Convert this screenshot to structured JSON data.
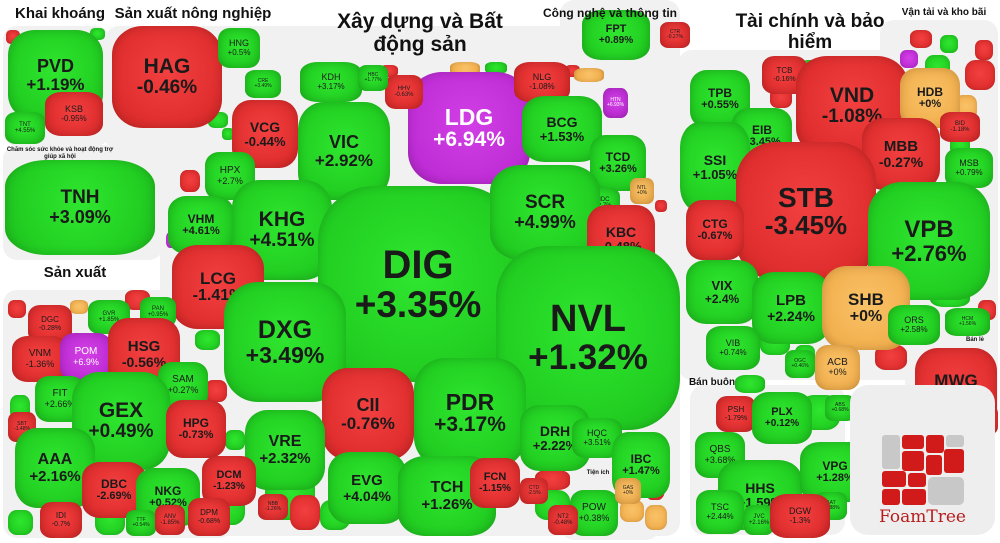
{
  "groups": [
    {
      "label": "Khai khoáng"
    },
    {
      "label": "Sản xuất nông nghiệp"
    },
    {
      "label": "Xây dựng và Bất động sản"
    },
    {
      "label": "Công nghệ và thông tin"
    },
    {
      "label": "Tài chính và bảo hiểm"
    },
    {
      "label": "Vận tải và kho bãi"
    },
    {
      "label": "Chăm sóc sức khỏe và hoạt động trợ giúp xã hội"
    },
    {
      "label": "Sản xuất"
    },
    {
      "label": "Bán buôn"
    },
    {
      "label": "Bán lẻ"
    },
    {
      "label": "Tiện ích"
    }
  ],
  "colors": {
    "up": "#22cf22",
    "down": "#e12f2f",
    "unchanged": "#f2b04f",
    "ceiling": "#bf2dd6"
  },
  "stocks": [
    {
      "ticker": "PVD",
      "change": "+1.19%",
      "color": "g"
    },
    {
      "ticker": "KSB",
      "change": "-0.95%",
      "color": "r"
    },
    {
      "ticker": "TNT",
      "change": "+4.55%",
      "color": "g"
    },
    {
      "ticker": "TNH",
      "change": "+3.09%",
      "color": "g"
    },
    {
      "ticker": "HAG",
      "change": "-0.46%",
      "color": "r"
    },
    {
      "ticker": "HNG",
      "change": "+0.5%",
      "color": "g"
    },
    {
      "ticker": "VCG",
      "change": "-0.44%",
      "color": "r"
    },
    {
      "ticker": "CRE",
      "change": "+3.49%",
      "color": "g"
    },
    {
      "ticker": "KDH",
      "change": "+3.17%",
      "color": "g"
    },
    {
      "ticker": "VIC",
      "change": "+2.92%",
      "color": "g"
    },
    {
      "ticker": "HPX",
      "change": "+2.7%",
      "color": "g"
    },
    {
      "ticker": "VHM",
      "change": "+4.61%",
      "color": "g"
    },
    {
      "ticker": "KHG",
      "change": "+4.51%",
      "color": "g"
    },
    {
      "ticker": "LCG",
      "change": "-1.41%",
      "color": "r"
    },
    {
      "ticker": "LDG",
      "change": "+6.94%",
      "color": "p"
    },
    {
      "ticker": "DIG",
      "change": "+3.35%",
      "color": "g"
    },
    {
      "ticker": "NLG",
      "change": "-1.08%",
      "color": "r"
    },
    {
      "ticker": "HHV",
      "change": "-0.63%",
      "color": "r"
    },
    {
      "ticker": "HBC",
      "change": "+1.77%",
      "color": "g"
    },
    {
      "ticker": "BCG",
      "change": "+1.53%",
      "color": "g"
    },
    {
      "ticker": "HTN",
      "change": "+6.93%",
      "color": "p"
    },
    {
      "ticker": "TCD",
      "change": "+3.26%",
      "color": "g"
    },
    {
      "ticker": "HDC",
      "change": "+2.7%",
      "color": "g"
    },
    {
      "ticker": "NTL",
      "change": "+0%",
      "color": "o"
    },
    {
      "ticker": "SCR",
      "change": "+4.99%",
      "color": "g"
    },
    {
      "ticker": "KBC",
      "change": "-0.48%",
      "color": "r"
    },
    {
      "ticker": "NVL",
      "change": "+1.32%",
      "color": "g"
    },
    {
      "ticker": "DXG",
      "change": "+3.49%",
      "color": "g"
    },
    {
      "ticker": "CII",
      "change": "-0.76%",
      "color": "r"
    },
    {
      "ticker": "PDR",
      "change": "+3.17%",
      "color": "g"
    },
    {
      "ticker": "VRE",
      "change": "+2.32%",
      "color": "g"
    },
    {
      "ticker": "EVG",
      "change": "+4.04%",
      "color": "g"
    },
    {
      "ticker": "TCH",
      "change": "+1.26%",
      "color": "g"
    },
    {
      "ticker": "FCN",
      "change": "-1.15%",
      "color": "r"
    },
    {
      "ticker": "CTD",
      "change": "-2.5%",
      "color": "r"
    },
    {
      "ticker": "DRH",
      "change": "+2.22%",
      "color": "g"
    },
    {
      "ticker": "HQC",
      "change": "+3.51%",
      "color": "g"
    },
    {
      "ticker": "IBC",
      "change": "+1.47%",
      "color": "g"
    },
    {
      "ticker": "POW",
      "change": "+0.38%",
      "color": "g"
    },
    {
      "ticker": "GAS",
      "change": "+0%",
      "color": "o"
    },
    {
      "ticker": "NT2",
      "change": "-0.48%",
      "color": "r"
    },
    {
      "ticker": "FPT",
      "change": "+0.89%",
      "color": "g"
    },
    {
      "ticker": "CTR",
      "change": "-0.27%",
      "color": "r"
    },
    {
      "ticker": "TPB",
      "change": "+0.55%",
      "color": "g"
    },
    {
      "ticker": "EIB",
      "change": "+3.45%",
      "color": "g"
    },
    {
      "ticker": "TCB",
      "change": "-0.16%",
      "color": "r"
    },
    {
      "ticker": "SSI",
      "change": "+1.05%",
      "color": "g"
    },
    {
      "ticker": "VND",
      "change": "-1.08%",
      "color": "r"
    },
    {
      "ticker": "HDB",
      "change": "+0%",
      "color": "o"
    },
    {
      "ticker": "BID",
      "change": "-1.18%",
      "color": "r"
    },
    {
      "ticker": "MBB",
      "change": "-0.27%",
      "color": "r"
    },
    {
      "ticker": "MSB",
      "change": "+0.79%",
      "color": "g"
    },
    {
      "ticker": "STB",
      "change": "-3.45%",
      "color": "r"
    },
    {
      "ticker": "CTG",
      "change": "-0.67%",
      "color": "r"
    },
    {
      "ticker": "VPB",
      "change": "+2.76%",
      "color": "g"
    },
    {
      "ticker": "VIX",
      "change": "+2.4%",
      "color": "g"
    },
    {
      "ticker": "LPB",
      "change": "+2.24%",
      "color": "g"
    },
    {
      "ticker": "SHB",
      "change": "+0%",
      "color": "o"
    },
    {
      "ticker": "VIB",
      "change": "+0.74%",
      "color": "g"
    },
    {
      "ticker": "OGC",
      "change": "+0.46%",
      "color": "g"
    },
    {
      "ticker": "ACB",
      "change": "+0%",
      "color": "o"
    },
    {
      "ticker": "ORS",
      "change": "+2.58%",
      "color": "g"
    },
    {
      "ticker": "HCM",
      "change": "+1.56%",
      "color": "g"
    },
    {
      "ticker": "MWG",
      "change": "-1.62%",
      "color": "r"
    },
    {
      "ticker": "VGC",
      "change": "-1.39%",
      "color": "r"
    },
    {
      "ticker": "PSH",
      "change": "-1.79%",
      "color": "r"
    },
    {
      "ticker": "PLX",
      "change": "+0.12%",
      "color": "g"
    },
    {
      "ticker": "ABS",
      "change": "+0.68%",
      "color": "g"
    },
    {
      "ticker": "QBS",
      "change": "+3.68%",
      "color": "g"
    },
    {
      "ticker": "HHS",
      "change": "+1.59%",
      "color": "g"
    },
    {
      "ticker": "VPG",
      "change": "+1.28%",
      "color": "g"
    },
    {
      "ticker": "AAT",
      "change": "+3.88%",
      "color": "g"
    },
    {
      "ticker": "TSC",
      "change": "+2.44%",
      "color": "g"
    },
    {
      "ticker": "JVC",
      "change": "+2.16%",
      "color": "g"
    },
    {
      "ticker": "DGW",
      "change": "-1.3%",
      "color": "r"
    },
    {
      "ticker": "DGC",
      "change": "-0.28%",
      "color": "r"
    },
    {
      "ticker": "GVR",
      "change": "+1.85%",
      "color": "g"
    },
    {
      "ticker": "PAN",
      "change": "+0.95%",
      "color": "g"
    },
    {
      "ticker": "VNM",
      "change": "-1.36%",
      "color": "r"
    },
    {
      "ticker": "POM",
      "change": "+6.9%",
      "color": "p"
    },
    {
      "ticker": "HSG",
      "change": "-0.56%",
      "color": "r"
    },
    {
      "ticker": "SAM",
      "change": "+0.27%",
      "color": "g"
    },
    {
      "ticker": "FIT",
      "change": "+2.66%",
      "color": "g"
    },
    {
      "ticker": "GEX",
      "change": "+0.49%",
      "color": "g"
    },
    {
      "ticker": "SBT",
      "change": "-1.48%",
      "color": "r"
    },
    {
      "ticker": "HPG",
      "change": "-0.73%",
      "color": "r"
    },
    {
      "ticker": "AAA",
      "change": "+2.16%",
      "color": "g"
    },
    {
      "ticker": "DBC",
      "change": "-2.69%",
      "color": "r"
    },
    {
      "ticker": "NKG",
      "change": "+0.52%",
      "color": "g"
    },
    {
      "ticker": "DCM",
      "change": "-1.23%",
      "color": "r"
    },
    {
      "ticker": "IDI",
      "change": "-0.7%",
      "color": "r"
    },
    {
      "ticker": "TTF",
      "change": "+0.54%",
      "color": "g"
    },
    {
      "ticker": "ANV",
      "change": "-1.85%",
      "color": "r"
    },
    {
      "ticker": "DPM",
      "change": "-0.68%",
      "color": "r"
    },
    {
      "ticker": "NBB",
      "change": "-1.26%",
      "color": "r"
    }
  ],
  "logo": {
    "text": "FoamTree"
  }
}
